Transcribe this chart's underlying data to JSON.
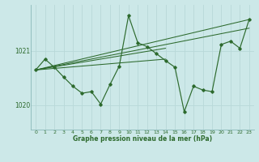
{
  "background_color": "#cce8e8",
  "grid_color": "#b8d8d8",
  "line_color": "#2d6a2d",
  "text_color": "#2d6a2d",
  "xlabel": "Graphe pression niveau de la mer (hPa)",
  "xticks": [
    0,
    1,
    2,
    3,
    4,
    5,
    6,
    7,
    8,
    9,
    10,
    11,
    12,
    13,
    14,
    15,
    16,
    17,
    18,
    19,
    20,
    21,
    22,
    23
  ],
  "yticks": [
    1020,
    1021
  ],
  "ylim": [
    1019.55,
    1021.85
  ],
  "xlim": [
    -0.5,
    23.5
  ],
  "main_series": [
    1020.65,
    1020.85,
    1020.7,
    1020.52,
    1020.35,
    1020.22,
    1020.25,
    1020.02,
    1020.38,
    1020.72,
    1021.65,
    1021.15,
    1021.08,
    1020.95,
    1020.82,
    1020.7,
    1019.88,
    1020.35,
    1020.28,
    1020.25,
    1021.12,
    1021.18,
    1021.05,
    1021.58
  ],
  "trend_lines": [
    {
      "x": [
        0,
        23
      ],
      "y": [
        1020.65,
        1021.58
      ]
    },
    {
      "x": [
        0,
        23
      ],
      "y": [
        1020.65,
        1021.42
      ]
    },
    {
      "x": [
        0,
        14
      ],
      "y": [
        1020.65,
        1021.05
      ]
    },
    {
      "x": [
        0,
        14
      ],
      "y": [
        1020.65,
        1020.85
      ]
    }
  ],
  "figsize": [
    3.2,
    2.0
  ],
  "dpi": 100
}
